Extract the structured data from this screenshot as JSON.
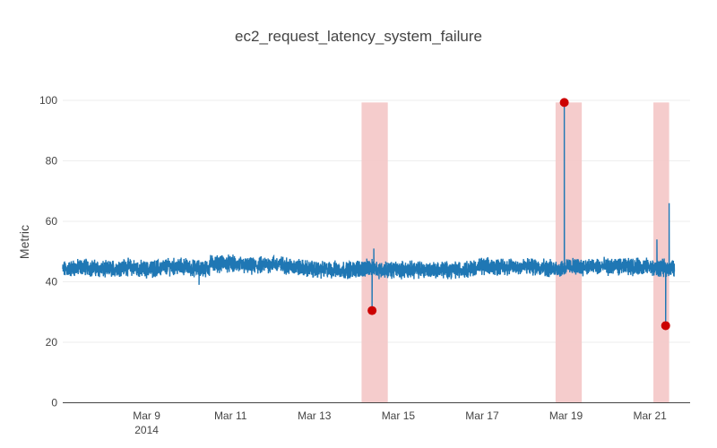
{
  "chart_data": {
    "type": "line",
    "title": "ec2_request_latency_system_failure",
    "xlabel": "",
    "ylabel": "Metric",
    "x_range": [
      "2014-03-07",
      "2014-03-21T23:00"
    ],
    "ylim": [
      0,
      100
    ],
    "y_ticks": [
      0,
      20,
      40,
      60,
      80,
      100
    ],
    "x_ticks": [
      {
        "date": "2014-03-09",
        "label": "Mar 9",
        "sublabel": "2014"
      },
      {
        "date": "2014-03-11",
        "label": "Mar 11"
      },
      {
        "date": "2014-03-13",
        "label": "Mar 13"
      },
      {
        "date": "2014-03-15",
        "label": "Mar 15"
      },
      {
        "date": "2014-03-17",
        "label": "Mar 17"
      },
      {
        "date": "2014-03-19",
        "label": "Mar 19"
      },
      {
        "date": "2014-03-21",
        "label": "Mar 21"
      }
    ],
    "grid": true,
    "colors": {
      "line": "#1f77b4",
      "anomaly_point": "#cc0000",
      "anomaly_window": "#f4c6c6"
    },
    "series": [
      {
        "baseline": 44.5,
        "noise": 2.2,
        "start": "2014-03-07",
        "end": "2014-03-21T14:00",
        "samples": [
          [
            "2014-03-07T00:00",
            44
          ],
          [
            "2014-03-07T12:00",
            45
          ],
          [
            "2014-03-08T00:00",
            44
          ],
          [
            "2014-03-08T12:00",
            45
          ],
          [
            "2014-03-09T00:00",
            44
          ],
          [
            "2014-03-09T12:00",
            45
          ],
          [
            "2014-03-10T00:00",
            45
          ],
          [
            "2014-03-10T06:00",
            39
          ],
          [
            "2014-03-10T12:00",
            46
          ],
          [
            "2014-03-11T00:00",
            46
          ],
          [
            "2014-03-11T12:00",
            45
          ],
          [
            "2014-03-12T00:00",
            46
          ],
          [
            "2014-03-12T12:00",
            45
          ],
          [
            "2014-03-13T00:00",
            44
          ],
          [
            "2014-03-13T12:00",
            44
          ],
          [
            "2014-03-14T00:00",
            44
          ],
          [
            "2014-03-14T09:00",
            31
          ],
          [
            "2014-03-14T10:00",
            51
          ],
          [
            "2014-03-14T12:00",
            44
          ],
          [
            "2014-03-15T00:00",
            44
          ],
          [
            "2014-03-15T12:00",
            44
          ],
          [
            "2014-03-16T00:00",
            44
          ],
          [
            "2014-03-16T12:00",
            44
          ],
          [
            "2014-03-17T00:00",
            45
          ],
          [
            "2014-03-17T12:00",
            45
          ],
          [
            "2014-03-18T00:00",
            45
          ],
          [
            "2014-03-18T12:00",
            45
          ],
          [
            "2014-03-18T23:00",
            99
          ],
          [
            "2014-03-19T00:00",
            45
          ],
          [
            "2014-03-19T12:00",
            45
          ],
          [
            "2014-03-20T00:00",
            45
          ],
          [
            "2014-03-20T12:00",
            45
          ],
          [
            "2014-03-21T00:00",
            45
          ],
          [
            "2014-03-21T04:00",
            54
          ],
          [
            "2014-03-21T09:00",
            25
          ],
          [
            "2014-03-21T11:00",
            66
          ],
          [
            "2014-03-21T14:00",
            45
          ]
        ]
      }
    ],
    "anomaly_points": [
      {
        "x": "2014-03-14T09:00",
        "y": 30.5
      },
      {
        "x": "2014-03-18T23:00",
        "y": 99.3
      },
      {
        "x": "2014-03-21T09:00",
        "y": 25.5
      }
    ],
    "anomaly_windows": [
      {
        "start": "2014-03-14T03:00",
        "end": "2014-03-14T18:00",
        "y_top": 99.3
      },
      {
        "start": "2014-03-18T18:00",
        "end": "2014-03-19T09:00",
        "y_top": 99.3
      },
      {
        "start": "2014-03-21T02:00",
        "end": "2014-03-21T11:00",
        "y_top": 99.3
      }
    ]
  }
}
